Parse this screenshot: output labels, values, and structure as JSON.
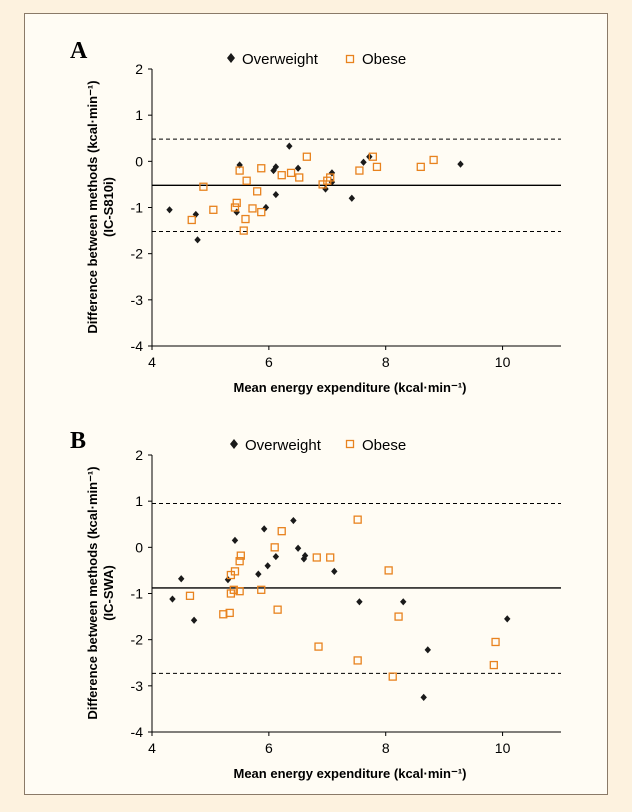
{
  "colors": {
    "overweight": "#1a1a1a",
    "obese": "#e8821e",
    "background": "#fdf2df",
    "panel": "#fffcf4"
  },
  "chart_data": [
    {
      "type": "scatter",
      "panel_label": "A",
      "title": "",
      "xlabel": "Mean energy expenditure (kcal·min⁻¹)",
      "ylabel_line1": "Difference between methods (kcal·min⁻¹)",
      "ylabel_line2": "(IC-S810i)",
      "xlim": [
        4,
        11
      ],
      "ylim": [
        -4,
        2
      ],
      "xticks": [
        4,
        6,
        8,
        10
      ],
      "yticks": [
        2,
        1,
        0,
        -1,
        -2,
        -3,
        -4
      ],
      "legend_placement": "top",
      "reference_lines": [
        {
          "kind": "mean",
          "y": -0.52,
          "style": "solid"
        },
        {
          "kind": "upper_limit",
          "y": 0.48,
          "style": "dashed"
        },
        {
          "kind": "lower_limit",
          "y": -1.52,
          "style": "dashed"
        }
      ],
      "series": [
        {
          "name": "Overweight",
          "marker": "diamond",
          "points": [
            [
              4.3,
              -1.05
            ],
            [
              4.75,
              -1.15
            ],
            [
              4.78,
              -1.7
            ],
            [
              5.45,
              -1.1
            ],
            [
              5.5,
              -0.08
            ],
            [
              5.95,
              -1.0
            ],
            [
              6.08,
              -0.2
            ],
            [
              6.12,
              -0.12
            ],
            [
              6.12,
              -0.72
            ],
            [
              6.35,
              0.33
            ],
            [
              6.5,
              -0.15
            ],
            [
              6.97,
              -0.6
            ],
            [
              7.08,
              -0.25
            ],
            [
              7.08,
              -0.45
            ],
            [
              7.42,
              -0.8
            ],
            [
              7.62,
              -0.02
            ],
            [
              7.72,
              0.1
            ],
            [
              9.28,
              -0.06
            ]
          ]
        },
        {
          "name": "Obese",
          "marker": "square",
          "points": [
            [
              4.68,
              -1.27
            ],
            [
              4.88,
              -0.55
            ],
            [
              5.05,
              -1.05
            ],
            [
              5.42,
              -1.0
            ],
            [
              5.45,
              -0.9
            ],
            [
              5.5,
              -0.2
            ],
            [
              5.57,
              -1.5
            ],
            [
              5.6,
              -1.25
            ],
            [
              5.62,
              -0.42
            ],
            [
              5.72,
              -1.02
            ],
            [
              5.8,
              -0.65
            ],
            [
              5.87,
              -0.15
            ],
            [
              5.87,
              -1.1
            ],
            [
              6.22,
              -0.3
            ],
            [
              6.38,
              -0.25
            ],
            [
              6.52,
              -0.35
            ],
            [
              6.65,
              0.1
            ],
            [
              6.92,
              -0.5
            ],
            [
              7.0,
              -0.42
            ],
            [
              7.05,
              -0.35
            ],
            [
              7.55,
              -0.2
            ],
            [
              7.78,
              0.1
            ],
            [
              7.85,
              -0.12
            ],
            [
              8.6,
              -0.12
            ],
            [
              8.82,
              0.03
            ]
          ]
        }
      ]
    },
    {
      "type": "scatter",
      "panel_label": "B",
      "title": "",
      "xlabel": "Mean energy expenditure (kcal·min⁻¹)",
      "ylabel_line1": "Difference between methods (kcal·min⁻¹)",
      "ylabel_line2": "(IC-SWA)",
      "xlim": [
        4,
        11
      ],
      "ylim": [
        -4,
        2
      ],
      "xticks": [
        4,
        6,
        8,
        10
      ],
      "yticks": [
        2,
        1,
        0,
        -1,
        -2,
        -3,
        -4
      ],
      "legend_placement": "top",
      "reference_lines": [
        {
          "kind": "mean",
          "y": -0.88,
          "style": "solid"
        },
        {
          "kind": "upper_limit",
          "y": 0.95,
          "style": "dashed"
        },
        {
          "kind": "lower_limit",
          "y": -2.73,
          "style": "dashed"
        }
      ],
      "series": [
        {
          "name": "Overweight",
          "marker": "diamond",
          "points": [
            [
              4.35,
              -1.12
            ],
            [
              4.5,
              -0.68
            ],
            [
              4.72,
              -1.58
            ],
            [
              5.3,
              -0.7
            ],
            [
              5.42,
              0.15
            ],
            [
              5.82,
              -0.58
            ],
            [
              5.92,
              0.4
            ],
            [
              5.98,
              -0.4
            ],
            [
              6.12,
              -0.2
            ],
            [
              6.42,
              0.58
            ],
            [
              6.5,
              -0.02
            ],
            [
              6.62,
              -0.18
            ],
            [
              6.6,
              -0.25
            ],
            [
              7.12,
              -0.52
            ],
            [
              7.55,
              -1.18
            ],
            [
              8.3,
              -1.18
            ],
            [
              8.65,
              -3.25
            ],
            [
              8.72,
              -2.22
            ],
            [
              10.08,
              -1.55
            ]
          ]
        },
        {
          "name": "Obese",
          "marker": "square",
          "points": [
            [
              4.65,
              -1.05
            ],
            [
              5.22,
              -1.45
            ],
            [
              5.33,
              -1.42
            ],
            [
              5.35,
              -0.6
            ],
            [
              5.35,
              -1.0
            ],
            [
              5.4,
              -0.92
            ],
            [
              5.42,
              -0.52
            ],
            [
              5.5,
              -0.3
            ],
            [
              5.5,
              -0.95
            ],
            [
              5.52,
              -0.18
            ],
            [
              5.87,
              -0.92
            ],
            [
              6.1,
              0.0
            ],
            [
              6.15,
              -1.35
            ],
            [
              6.22,
              0.35
            ],
            [
              6.82,
              -0.22
            ],
            [
              6.85,
              -2.15
            ],
            [
              7.05,
              -0.22
            ],
            [
              7.52,
              0.6
            ],
            [
              7.52,
              -2.45
            ],
            [
              8.05,
              -0.5
            ],
            [
              8.12,
              -2.8
            ],
            [
              8.22,
              -1.5
            ],
            [
              9.85,
              -2.55
            ],
            [
              9.88,
              -2.05
            ]
          ]
        }
      ]
    }
  ]
}
